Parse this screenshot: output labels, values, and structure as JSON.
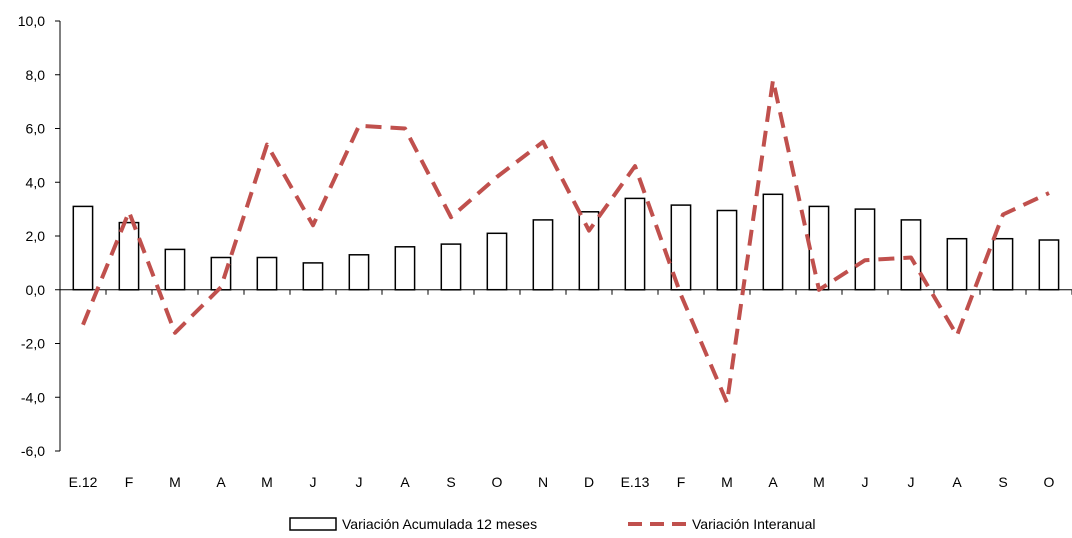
{
  "chart_data": {
    "type": "bar",
    "categories": [
      "E.12",
      "F",
      "M",
      "A",
      "M",
      "J",
      "J",
      "A",
      "S",
      "O",
      "N",
      "D",
      "E.13",
      "F",
      "M",
      "A",
      "M",
      "J",
      "J",
      "A",
      "S",
      "O"
    ],
    "series": [
      {
        "name": "Variación Acumulada 12 meses",
        "type": "bar",
        "values": [
          3.1,
          2.5,
          1.5,
          1.2,
          1.2,
          1.0,
          1.3,
          1.6,
          1.7,
          2.1,
          2.6,
          2.9,
          3.4,
          3.15,
          2.95,
          3.55,
          3.1,
          3.0,
          2.6,
          1.9,
          1.9,
          1.85
        ]
      },
      {
        "name": "Variación Interanual",
        "type": "line",
        "values": [
          -1.3,
          2.9,
          -1.6,
          0.1,
          5.4,
          2.4,
          6.1,
          6.0,
          2.7,
          4.2,
          5.5,
          2.2,
          4.6,
          -0.2,
          -4.2,
          7.8,
          0.0,
          1.1,
          1.2,
          -1.7,
          2.8,
          3.6
        ]
      }
    ],
    "ylim": [
      -6.0,
      10.0
    ],
    "yticks": [
      "-6,0",
      "-4,0",
      "-2,0",
      "0,0",
      "2,0",
      "4,0",
      "6,0",
      "8,0",
      "10,0"
    ],
    "ytick_values": [
      -6,
      -4,
      -2,
      0,
      2,
      4,
      6,
      8,
      10
    ],
    "legend_position": "bottom",
    "grid": false,
    "colors": {
      "bar_fill": "#ffffff",
      "bar_stroke": "#000000",
      "line": "#c0504d",
      "axis": "#000000"
    }
  }
}
